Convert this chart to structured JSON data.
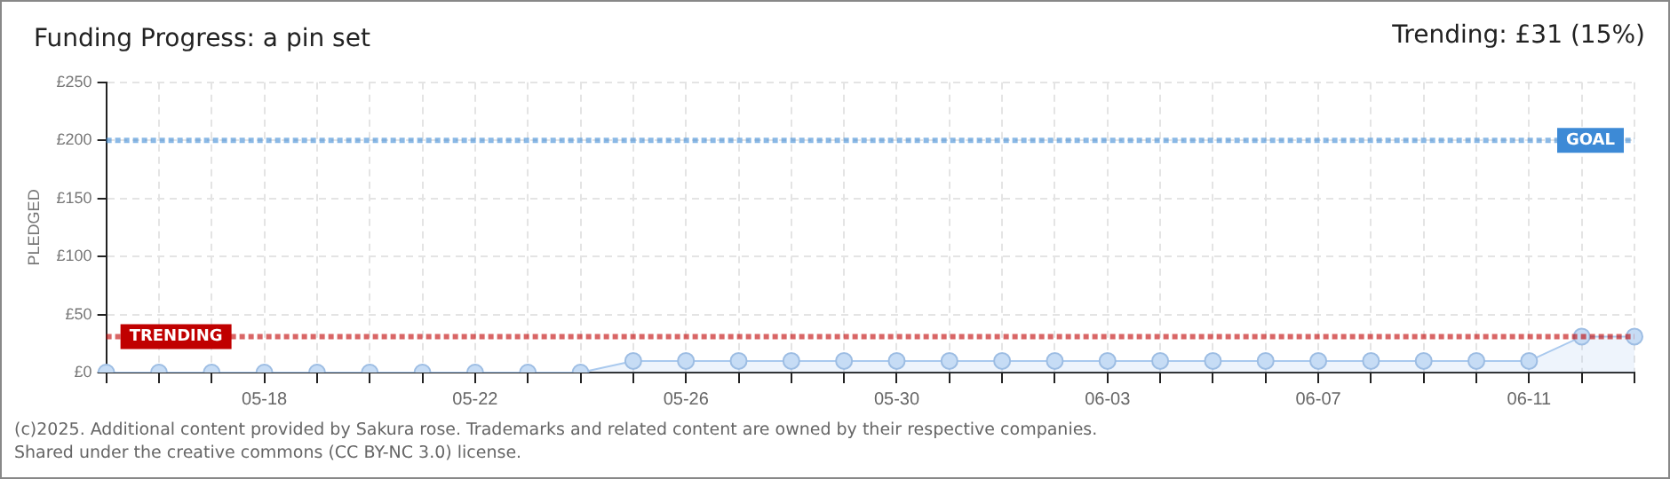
{
  "chart_data": {
    "type": "area",
    "title": "Funding Progress: a pin set",
    "ylabel": "PLEDGED",
    "categories": [
      null,
      null,
      null,
      "05-18",
      null,
      null,
      null,
      "05-22",
      null,
      null,
      null,
      "05-26",
      null,
      null,
      null,
      "05-30",
      null,
      null,
      null,
      "06-03",
      null,
      null,
      null,
      "06-07",
      null,
      null,
      null,
      "06-11",
      null,
      null
    ],
    "series": [
      {
        "color": "#a9c9ee",
        "values": [
          0,
          0,
          0,
          0,
          0,
          0,
          0,
          0,
          0,
          0,
          10,
          10,
          10,
          10,
          10,
          10,
          10,
          10,
          10,
          10,
          10,
          10,
          10,
          10,
          10,
          10,
          10,
          10,
          31,
          31
        ]
      }
    ],
    "ylim": [
      0,
      250
    ],
    "yticks": [
      {
        "value": 0,
        "label": "£0"
      },
      {
        "value": 50,
        "label": "£50"
      },
      {
        "value": 100,
        "label": "£100"
      },
      {
        "value": 150,
        "label": "£150"
      },
      {
        "value": 200,
        "label": "£200"
      },
      {
        "value": 250,
        "label": "£250"
      }
    ],
    "grid": true,
    "marker": "circle",
    "legend": false,
    "ref_lines": [
      {
        "axis": "y",
        "value": 200,
        "label": "GOAL",
        "color": "#3d8ad6",
        "line_style": "dotted"
      },
      {
        "axis": "y",
        "value": 31,
        "label": "TRENDING",
        "color": "#c00000",
        "line_style": "dotted"
      }
    ],
    "annotations": [
      "Trending:  £31 (15%)",
      "(c)2025. Additional content provided by Sakura rose. Trademarks and related content are owned by their respective companies.",
      "Shared under the creative commons (CC BY-NC 3.0) license."
    ]
  }
}
